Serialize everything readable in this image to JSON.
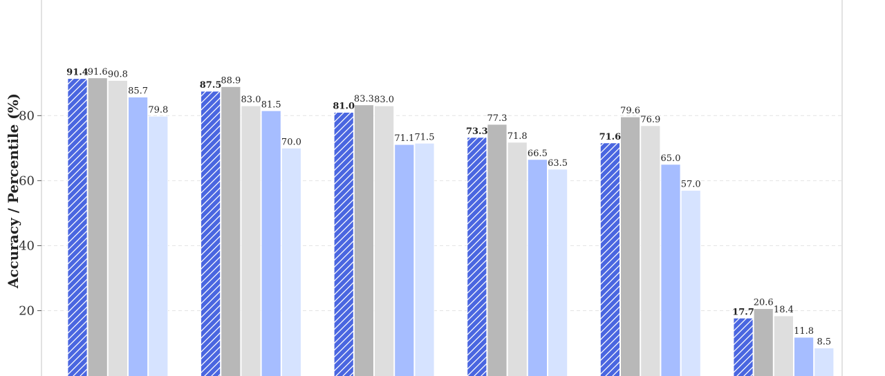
{
  "chart_data": {
    "type": "bar",
    "ylabel": "Accuracy / Percentile (%)",
    "ylim": [
      -3.5,
      116
    ],
    "yticks": [
      20,
      40,
      60,
      80
    ],
    "grid": true,
    "categories": [
      "",
      "",
      "",
      "",
      "",
      ""
    ],
    "series": [
      {
        "color": "#4a66e0",
        "hatch": true,
        "bold_labels": true,
        "values": [
          91.4,
          87.5,
          81.0,
          73.3,
          71.6,
          17.7
        ],
        "labels": [
          "91.4",
          "87.5",
          "81.0",
          "73.3",
          "71.6",
          "17.7"
        ]
      },
      {
        "color": "#b8b8b8",
        "values": [
          91.6,
          88.9,
          83.3,
          77.3,
          79.6,
          20.6
        ],
        "labels": [
          "91.6",
          "88.9",
          "83.3",
          "77.3",
          "79.6",
          "20.6"
        ]
      },
      {
        "color": "#dedede",
        "values": [
          90.8,
          83.0,
          83.0,
          71.8,
          76.9,
          18.4
        ],
        "labels": [
          "90.8",
          "83.0",
          "83.0",
          "71.8",
          "76.9",
          "18.4"
        ]
      },
      {
        "color": "#a6bdff",
        "values": [
          85.7,
          81.5,
          71.1,
          66.5,
          65.0,
          11.8
        ],
        "labels": [
          "85.7",
          "81.5",
          "71.1",
          "66.5",
          "65.0",
          "11.8"
        ]
      },
      {
        "color": "#d6e3ff",
        "values": [
          79.8,
          70.0,
          71.5,
          63.5,
          57.0,
          8.5
        ],
        "labels": [
          "79.8",
          "70.0",
          "71.5",
          "63.5",
          "57.0",
          "8.5"
        ]
      }
    ]
  }
}
